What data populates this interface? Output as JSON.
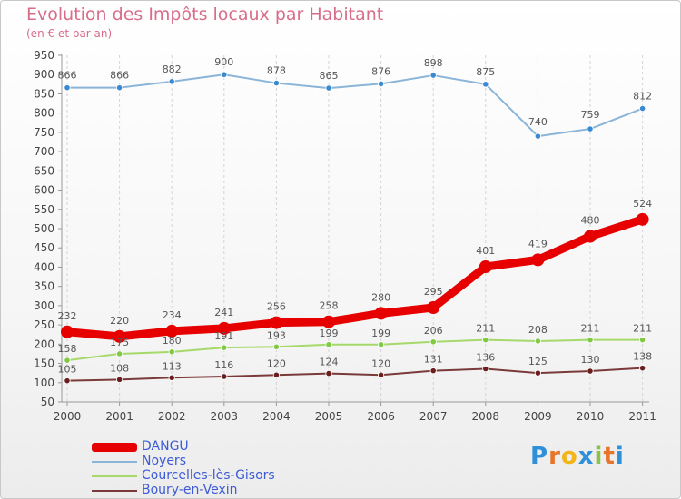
{
  "header": {
    "title": "Evolution des Impôts locaux par Habitant",
    "subtitle": "(en € et par an)"
  },
  "logo": {
    "letters": [
      "P",
      "r",
      "o",
      "x",
      "i",
      "t",
      "i"
    ],
    "colors": [
      "#2f8fd8",
      "#e8742a",
      "#f2b51c",
      "#2f8fd8",
      "#8bc34a",
      "#e8742a",
      "#2f8fd8"
    ]
  },
  "chart_data": {
    "type": "line",
    "title": "Evolution des Impôts locaux par Habitant",
    "subtitle": "(en € et par an)",
    "xlabel": "",
    "ylabel": "",
    "x": [
      "2000",
      "2001",
      "2002",
      "2003",
      "2004",
      "2005",
      "2006",
      "2007",
      "2008",
      "2009",
      "2010",
      "2011"
    ],
    "ylim": [
      50,
      950
    ],
    "yticks": [
      50,
      100,
      150,
      200,
      250,
      300,
      350,
      400,
      450,
      500,
      550,
      600,
      650,
      700,
      750,
      800,
      850,
      900,
      950
    ],
    "grid": "dashed vertical",
    "legend_position": "bottom-left",
    "series": [
      {
        "name": "DANGU",
        "color": "#e60000",
        "values": [
          232,
          220,
          234,
          241,
          256,
          258,
          280,
          295,
          401,
          419,
          480,
          524
        ],
        "labels": [
          "232",
          "220",
          "234",
          "241",
          "256",
          "258",
          "280",
          "295",
          "401",
          "419",
          "480",
          "524"
        ]
      },
      {
        "name": "Noyers",
        "color": "#8ab4d8",
        "values": [
          866,
          866,
          882,
          900,
          878,
          865,
          876,
          898,
          875,
          740,
          759,
          812
        ],
        "labels": [
          "866",
          "866",
          "882",
          "900",
          "878",
          "865",
          "876",
          "898",
          "875",
          "740",
          "759",
          "812"
        ]
      },
      {
        "name": "Courcelles-lès-Gisors",
        "color": "#a6d96a",
        "values": [
          158,
          175,
          180,
          191,
          193,
          199,
          199,
          206,
          211,
          208,
          211,
          211
        ],
        "labels": [
          "158",
          "175",
          "180",
          "191",
          "193",
          "199",
          "199",
          "206",
          "211",
          "208",
          "211",
          "211"
        ]
      },
      {
        "name": "Boury-en-Vexin",
        "color": "#7b3a3a",
        "values": [
          105,
          108,
          113,
          116,
          120,
          124,
          120,
          131,
          136,
          125,
          130,
          138
        ],
        "labels": [
          "105",
          "108",
          "113",
          "116",
          "120",
          "124",
          "120",
          "131",
          "136",
          "125",
          "130",
          "138"
        ]
      }
    ]
  }
}
